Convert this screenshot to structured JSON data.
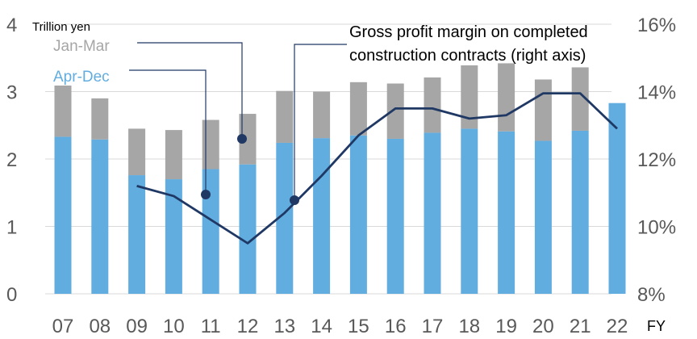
{
  "chart_data": {
    "type": "bar",
    "stacked": true,
    "categories": [
      "07",
      "08",
      "09",
      "10",
      "11",
      "12",
      "13",
      "14",
      "15",
      "16",
      "17",
      "18",
      "19",
      "20",
      "21",
      "22"
    ],
    "series": [
      {
        "name": "Apr-Dec",
        "axis": "left",
        "color": "#62ade0",
        "values": [
          2.33,
          2.29,
          1.76,
          1.7,
          1.85,
          1.92,
          2.24,
          2.31,
          2.35,
          2.3,
          2.39,
          2.45,
          2.41,
          2.27,
          2.42,
          2.83
        ]
      },
      {
        "name": "Jan-Mar",
        "axis": "left",
        "color": "#a6a6a6",
        "values": [
          0.76,
          0.61,
          0.69,
          0.73,
          0.73,
          0.75,
          0.77,
          0.69,
          0.79,
          0.82,
          0.82,
          0.94,
          1.01,
          0.91,
          0.94,
          null
        ]
      },
      {
        "name": "Gross profit margin on completed construction contracts (right axis)",
        "axis": "right",
        "type": "line",
        "color": "#1f3864",
        "values": [
          null,
          null,
          11.2,
          10.9,
          10.2,
          9.5,
          10.4,
          11.5,
          12.7,
          13.5,
          13.5,
          13.2,
          13.3,
          13.95,
          13.95,
          12.9
        ]
      }
    ],
    "y_left": {
      "label": "Trillion yen",
      "ylim": [
        0,
        4
      ],
      "ticks": [
        "0",
        "1",
        "2",
        "3",
        "4"
      ]
    },
    "y_right": {
      "ylim": [
        8,
        16
      ],
      "ticks": [
        "8%",
        "10%",
        "12%",
        "14%",
        "16%"
      ]
    },
    "xlabel": "FY",
    "grid": "horizontal",
    "legend": "callout labels top-left"
  }
}
